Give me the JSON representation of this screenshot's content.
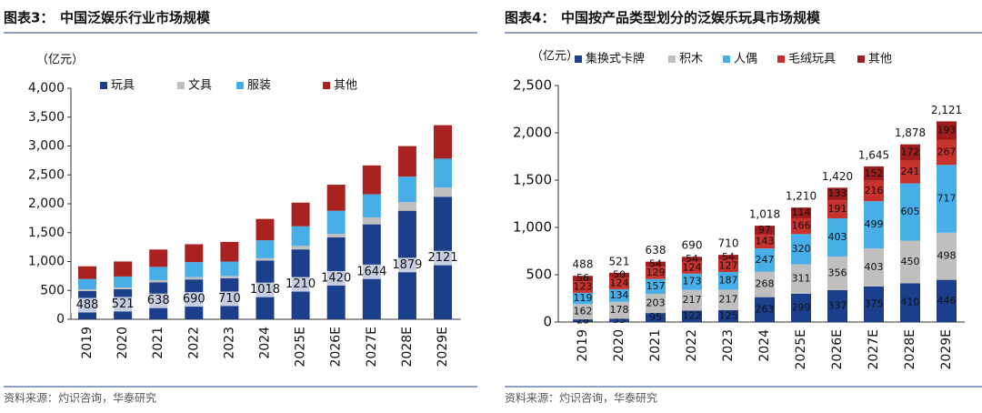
{
  "chart_data": [
    {
      "type": "bar",
      "stacked": true,
      "label": "图表3：",
      "title": "中国泛娱乐行业市场规模",
      "ylabel": "（亿元）",
      "source": "资料来源：灼识咨询，华泰研究",
      "categories": [
        "2019",
        "2020",
        "2021",
        "2022",
        "2023",
        "2024",
        "2025E",
        "2026E",
        "2027E",
        "2028E",
        "2029E"
      ],
      "series": [
        {
          "name": "玩具",
          "color": "#1c3f8c",
          "data_labels": true,
          "label_color": "#111",
          "values": [
            488,
            521,
            638,
            690,
            710,
            1018,
            1210,
            1420,
            1644,
            1879,
            2121
          ]
        },
        {
          "name": "文具",
          "color": "#bfbfbf",
          "values": [
            30,
            30,
            40,
            40,
            40,
            40,
            60,
            60,
            120,
            150,
            160
          ]
        },
        {
          "name": "服装",
          "color": "#48aee8",
          "values": [
            180,
            190,
            230,
            260,
            250,
            310,
            340,
            400,
            400,
            440,
            500
          ]
        },
        {
          "name": "其他",
          "color": "#a8231f",
          "values": [
            220,
            260,
            300,
            310,
            340,
            370,
            410,
            450,
            500,
            530,
            580
          ]
        }
      ],
      "ylim": [
        0,
        4000
      ],
      "yticks": [
        0,
        500,
        {
          "value": 1000,
          "label": "1,000"
        },
        {
          "value": 1500,
          "label": "1,500"
        },
        {
          "value": 2000,
          "label": "2,000"
        },
        {
          "value": 2500,
          "label": "2,500"
        },
        {
          "value": 3000,
          "label": "3,000"
        },
        {
          "value": 3500,
          "label": "3,500"
        },
        {
          "value": 4000,
          "label": "4,000"
        }
      ]
    },
    {
      "type": "bar",
      "stacked": true,
      "label": "图表4：",
      "title": "中国按产品类型划分的泛娱乐玩具市场规模",
      "ylabel": "（亿元）",
      "source": "资料来源：灼识咨询，华泰研究",
      "categories": [
        "2019",
        "2020",
        "2021",
        "2022",
        "2023",
        "2024",
        "2025E",
        "2026E",
        "2027E",
        "2028E",
        "2029E"
      ],
      "series": [
        {
          "name": "集换式卡牌",
          "color": "#1c3f8c",
          "data_labels": true,
          "label_color": "#fff",
          "values": [
            28,
            35,
            95,
            122,
            125,
            263,
            299,
            337,
            375,
            410,
            446
          ]
        },
        {
          "name": "积木",
          "color": "#bfbfbf",
          "data_labels": true,
          "label_color": "#111",
          "values": [
            162,
            178,
            203,
            217,
            217,
            268,
            311,
            356,
            403,
            450,
            498
          ]
        },
        {
          "name": "人偶",
          "color": "#48aee8",
          "data_labels": true,
          "label_color": "#111",
          "values": [
            119,
            134,
            157,
            173,
            187,
            247,
            320,
            403,
            499,
            605,
            717
          ]
        },
        {
          "name": "毛绒玩具",
          "color": "#c8322c",
          "data_labels": true,
          "label_color": "#fff",
          "values": [
            123,
            124,
            129,
            124,
            127,
            143,
            166,
            191,
            216,
            241,
            267
          ]
        },
        {
          "name": "其他",
          "color": "#9e1c1c",
          "data_labels": true,
          "label_color": "#fff",
          "values": [
            56,
            50,
            54,
            54,
            54,
            97,
            114,
            133,
            152,
            172,
            193
          ]
        }
      ],
      "totals": [
        488,
        521,
        638,
        690,
        710,
        1018,
        1210,
        1420,
        1645,
        1878,
        2121
      ],
      "total_labels": [
        "488",
        "521",
        "638",
        "690",
        "710",
        "1,018",
        "1,210",
        "1,420",
        "1,645",
        "1,878",
        "2,121"
      ],
      "ylim": [
        0,
        2500
      ],
      "yticks": [
        0,
        500,
        {
          "value": 1000,
          "label": "1,000"
        },
        {
          "value": 1500,
          "label": "1,500"
        },
        {
          "value": 2000,
          "label": "2,000"
        },
        {
          "value": 2500,
          "label": "2,500"
        }
      ]
    }
  ]
}
